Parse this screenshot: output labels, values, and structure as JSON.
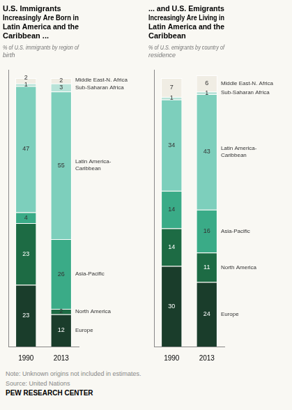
{
  "chart_data": [
    {
      "type": "bar",
      "stacked": true,
      "title": "U.S. Immigrants\nIncreasingly Are Born in\nLatin America and the\nCaribbean ...",
      "subtitle": "% of U.S. immigrants by region of\nbirth",
      "categories": [
        "1990",
        "2013"
      ],
      "series": [
        {
          "name": "Europe",
          "color": "#1a3d2b",
          "values": [
            23,
            12
          ]
        },
        {
          "name": "North America",
          "color": "#1d6b44",
          "values": [
            23,
            2
          ]
        },
        {
          "name": "Asia-Pacific",
          "color": "#3aab87",
          "values": [
            4,
            26
          ]
        },
        {
          "name": "Latin America-\nCaribbean",
          "color": "#7dcfbc",
          "values": [
            47,
            55
          ]
        },
        {
          "name": "Sub-Saharan Africa",
          "color": "#b8e3d8",
          "values": [
            1,
            3
          ]
        },
        {
          "name": "Middle East-N. Africa",
          "color": "#f0ede4",
          "values": [
            2,
            2
          ]
        }
      ],
      "ylim": [
        0,
        103
      ],
      "tick_labels": "x",
      "grid": false,
      "data_labels": true
    },
    {
      "type": "bar",
      "stacked": true,
      "title": "... and U.S. Emigrants\nIncreasingly Are Living in\nLatin America and the\nCaribbean",
      "subtitle": "% of U.S. emigrants by country of\nresidence",
      "categories": [
        "1990",
        "2013"
      ],
      "series": [
        {
          "name": "Europe",
          "color": "#1a3d2b",
          "values": [
            30,
            24
          ]
        },
        {
          "name": "North America",
          "color": "#1d6b44",
          "values": [
            14,
            11
          ]
        },
        {
          "name": "Asia-Pacific",
          "color": "#3aab87",
          "values": [
            14,
            16
          ]
        },
        {
          "name": "Latin America-\nCaribbean",
          "color": "#7dcfbc",
          "values": [
            34,
            43
          ]
        },
        {
          "name": "Sub-Saharan Africa",
          "color": "#b8e3d8",
          "values": [
            1,
            1
          ]
        },
        {
          "name": "Middle East-N. Africa",
          "color": "#f0ede4",
          "values": [
            7,
            6
          ]
        }
      ],
      "ylim": [
        0,
        103
      ],
      "tick_labels": "x",
      "grid": false,
      "data_labels": true
    }
  ],
  "annotations": [
    "Note: Unknown origins not included in estimates.",
    "Source: United Nations",
    "PEW RESEARCH CENTER"
  ]
}
